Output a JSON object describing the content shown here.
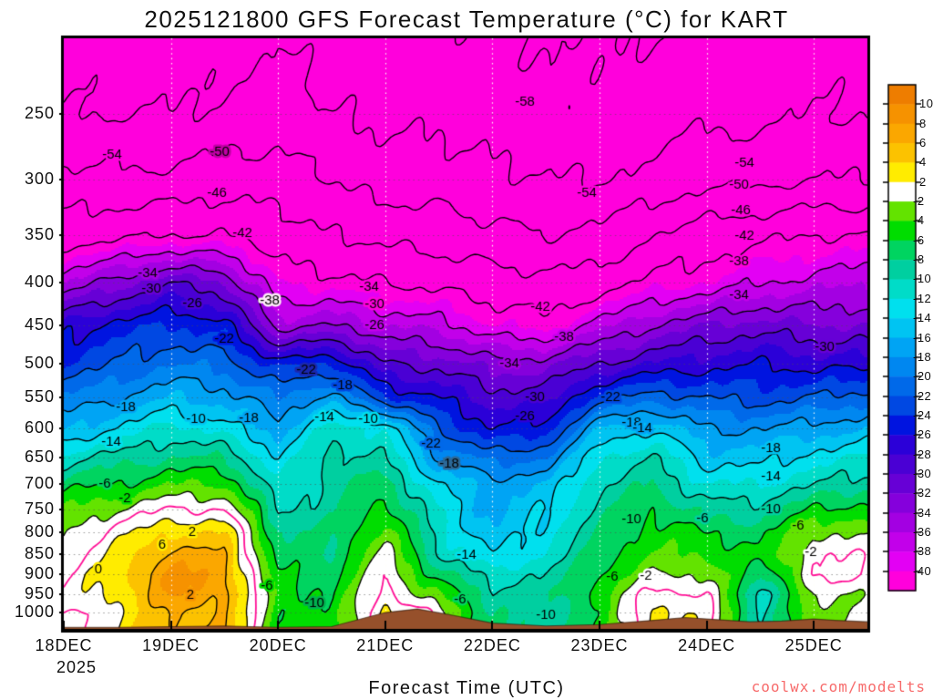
{
  "title": "2025121800 GFS Forecast Temperature (°C) for KART",
  "watermark": "coolwx.com/modelts",
  "axes": {
    "x_label": "Forecast Time (UTC)",
    "x_year": "2025",
    "x_tick_labels": [
      "18DEC",
      "19DEC",
      "20DEC",
      "21DEC",
      "22DEC",
      "23DEC",
      "24DEC",
      "25DEC"
    ],
    "y_tick_labels": [
      250,
      300,
      350,
      400,
      450,
      500,
      550,
      600,
      650,
      700,
      750,
      800,
      850,
      900,
      950,
      1000
    ]
  },
  "chart_data": {
    "type": "heatmap",
    "subtype": "filled-contour time-height cross-section",
    "title": "2025121800 GFS Forecast Temperature (°C) for KART",
    "xlabel": "Forecast Time (UTC)",
    "x_tick_labels": [
      "18DEC",
      "19DEC",
      "20DEC",
      "21DEC",
      "22DEC",
      "23DEC",
      "24DEC",
      "25DEC"
    ],
    "x_year": "2025",
    "time_days_from_18DEC00": [
      0,
      0.5,
      1,
      1.5,
      2,
      2.5,
      3,
      3.5,
      4,
      4.5,
      5,
      5.5,
      6,
      6.5,
      7,
      7.5
    ],
    "y_axis": {
      "scale": "log",
      "ticks_hPa": [
        250,
        300,
        350,
        400,
        450,
        500,
        550,
        600,
        650,
        700,
        750,
        800,
        850,
        900,
        950,
        1000
      ],
      "range_hPa": [
        202,
        1047
      ],
      "inverted": true
    },
    "pressure_levels_hPa": [
      200,
      250,
      300,
      350,
      400,
      450,
      500,
      550,
      600,
      650,
      700,
      750,
      800,
      850,
      900,
      950,
      1000,
      1050
    ],
    "temperature_C": [
      [
        -56,
        -56,
        -57,
        -56,
        -54,
        -56,
        -57,
        -57,
        -58,
        -58,
        -58,
        -58,
        -57,
        -57,
        -56,
        -56
      ],
      [
        -54,
        -54,
        -54,
        -53,
        -52,
        -54,
        -55,
        -55,
        -56,
        -57,
        -57,
        -56,
        -55,
        -55,
        -54,
        -54
      ],
      [
        -49,
        -49,
        -49,
        -48,
        -48,
        -50,
        -52,
        -52,
        -53,
        -54,
        -54,
        -53,
        -51,
        -51,
        -50,
        -50
      ],
      [
        -44,
        -43,
        -42,
        -42,
        -44,
        -46,
        -47,
        -48,
        -49,
        -50,
        -49,
        -46,
        -44,
        -43,
        -42,
        -42
      ],
      [
        -36,
        -33,
        -30,
        -32,
        -40,
        -41,
        -42,
        -43,
        -44,
        -45,
        -44,
        -41,
        -40,
        -38,
        -37,
        -36
      ],
      [
        -27,
        -25,
        -24,
        -25,
        -35,
        -34,
        -36,
        -37,
        -40,
        -41,
        -37,
        -34,
        -32,
        -31,
        -32,
        -32
      ],
      [
        -24,
        -22,
        -20,
        -21,
        -25,
        -24,
        -30,
        -31,
        -33,
        -33,
        -30,
        -28,
        -27,
        -26,
        -27,
        -27
      ],
      [
        -20,
        -18,
        -16,
        -17,
        -20,
        -17,
        -24,
        -26,
        -29,
        -29,
        -23,
        -21,
        -22,
        -23,
        -22,
        -21
      ],
      [
        -16,
        -14,
        -11,
        -13,
        -17,
        -11,
        -12,
        -22,
        -26,
        -25,
        -16,
        -14,
        -18,
        -18,
        -17,
        -16
      ],
      [
        -11,
        -9,
        -8,
        -8,
        -14,
        -9,
        -10,
        -18,
        -21,
        -20,
        -12,
        -10,
        -15,
        -15,
        -13,
        -12
      ],
      [
        -7,
        -6,
        -4,
        -4,
        -12,
        -9,
        -7,
        -14,
        -17,
        -16,
        -10,
        -8,
        -12,
        -12,
        -10,
        -9
      ],
      [
        -4,
        -2,
        0,
        0,
        -10,
        -9,
        -5,
        -12,
        -17,
        -14,
        -9,
        -6,
        -9,
        -9,
        -6,
        -5
      ],
      [
        -2,
        1,
        4,
        4,
        -8,
        -8,
        -3,
        -11,
        -16,
        -13,
        -8,
        -5,
        -6,
        -7,
        -2,
        -2.5
      ],
      [
        -1,
        2,
        7,
        6,
        -7,
        -8,
        -1,
        -10,
        -14,
        -12,
        -7,
        -4,
        -4,
        -6,
        0,
        -0.5
      ],
      [
        0,
        3,
        9,
        7,
        -6,
        -7,
        0,
        -7,
        -11,
        -10,
        -6,
        -2,
        -2,
        -8,
        0,
        0.5
      ],
      [
        0,
        3,
        8,
        7,
        -5,
        -6,
        1,
        -4,
        -9,
        -9,
        -5,
        1,
        0,
        -11,
        -2,
        -1.5
      ],
      [
        -1,
        2,
        6,
        6,
        -5,
        -6,
        3,
        -1,
        -8,
        -9,
        -6,
        3,
        1,
        -10,
        -3,
        -1
      ],
      [
        -1,
        2,
        6,
        6,
        -5,
        -6,
        3,
        -1,
        -8,
        -9,
        -6,
        3,
        1,
        -10,
        -3,
        -1
      ]
    ],
    "contour_interval_C": 4,
    "fill_interval_C": 2,
    "zero_line_color": "#ff0f96",
    "negative_contour_style": "dashed-black",
    "positive_contour_style": "solid-black",
    "contour_labels": {
      "format": "[temperature_C, days_from_18DEC00, pressure_hPa]",
      "items": [
        [
          -54,
          0.45,
          280
        ],
        [
          -50,
          1.45,
          278
        ],
        [
          -46,
          1.43,
          312
        ],
        [
          -42,
          1.67,
          348
        ],
        [
          -34,
          0.78,
          390
        ],
        [
          -30,
          0.82,
          407
        ],
        [
          -26,
          1.2,
          424
        ],
        [
          -22,
          1.5,
          468
        ],
        [
          -18,
          0.58,
          565
        ],
        [
          -14,
          0.44,
          623
        ],
        [
          -10,
          1.23,
          585
        ],
        [
          -6,
          0.38,
          700
        ],
        [
          -2,
          0.57,
          728
        ],
        [
          6,
          0.92,
          828
        ],
        [
          2,
          1.2,
          800
        ],
        [
          0,
          0.32,
          888
        ],
        [
          2,
          1.18,
          953
        ],
        [
          -6,
          1.9,
          930
        ],
        [
          -10,
          2.34,
          975
        ],
        [
          -18,
          1.73,
          583
        ],
        [
          -38,
          1.92,
          420
        ],
        [
          -34,
          2.85,
          405
        ],
        [
          -30,
          2.9,
          425
        ],
        [
          -26,
          2.9,
          450
        ],
        [
          -22,
          2.26,
          510
        ],
        [
          -18,
          2.6,
          532
        ],
        [
          -14,
          2.43,
          582
        ],
        [
          -10,
          2.84,
          585
        ],
        [
          -58,
          4.3,
          242
        ],
        [
          -54,
          4.88,
          312
        ],
        [
          -42,
          4.45,
          428
        ],
        [
          -38,
          4.67,
          465
        ],
        [
          -34,
          4.16,
          500
        ],
        [
          -30,
          4.4,
          550
        ],
        [
          -26,
          4.3,
          580
        ],
        [
          -22,
          3.43,
          626
        ],
        [
          -18,
          3.6,
          662
        ],
        [
          -14,
          3.76,
          853
        ],
        [
          -6,
          3.7,
          965
        ],
        [
          -10,
          4.5,
          1008
        ],
        [
          -54,
          6.35,
          287
        ],
        [
          -50,
          6.3,
          305
        ],
        [
          -46,
          6.32,
          327
        ],
        [
          -42,
          6.35,
          351
        ],
        [
          -38,
          6.3,
          377
        ],
        [
          -34,
          6.3,
          414
        ],
        [
          -30,
          7.1,
          478
        ],
        [
          -22,
          5.1,
          550
        ],
        [
          -18,
          5.3,
          590
        ],
        [
          -14,
          5.4,
          600
        ],
        [
          -18,
          6.6,
          634
        ],
        [
          -14,
          6.6,
          686
        ],
        [
          -10,
          6.6,
          750
        ],
        [
          -6,
          6.85,
          785
        ],
        [
          -10,
          5.3,
          772
        ],
        [
          -6,
          5.96,
          770
        ],
        [
          -6,
          5.12,
          905
        ],
        [
          -2,
          5.43,
          903
        ],
        [
          -2,
          6.97,
          845
        ]
      ]
    },
    "terrain": {
      "color": "#96502b",
      "surface_d_p": [
        [
          0,
          1042
        ],
        [
          0.5,
          1042
        ],
        [
          1,
          1040
        ],
        [
          1.5,
          1038
        ],
        [
          2,
          1042
        ],
        [
          2.5,
          1040
        ],
        [
          3,
          1000
        ],
        [
          3.3,
          990
        ],
        [
          3.6,
          1006
        ],
        [
          4,
          1030
        ],
        [
          4.5,
          1038
        ],
        [
          5,
          1034
        ],
        [
          5.5,
          1022
        ],
        [
          5.8,
          1014
        ],
        [
          6.1,
          1020
        ],
        [
          6.4,
          1026
        ],
        [
          6.7,
          1024
        ],
        [
          7,
          1018
        ],
        [
          7.2,
          1022
        ],
        [
          7.5,
          1026
        ]
      ]
    },
    "colorbar": {
      "tick_values": [
        10,
        8,
        6,
        4,
        2,
        -2,
        -4,
        -6,
        -8,
        -10,
        -12,
        -14,
        -16,
        -18,
        -20,
        -22,
        -24,
        -26,
        -28,
        -30,
        -32,
        -34,
        -36,
        -38,
        -40
      ],
      "band_colors": [
        "#ee7d00",
        "#f69200",
        "#fba700",
        "#fcc200",
        "#ffec00",
        "#ffffff",
        "#63e300",
        "#00dd00",
        "#00d460",
        "#00cfa0",
        "#00dcc8",
        "#00e0ee",
        "#00c4f2",
        "#00a4f4",
        "#0087f0",
        "#0069e9",
        "#0048e2",
        "#0014e0",
        "#2b00d8",
        "#4a00d4",
        "#6700d6",
        "#8500dc",
        "#a300e2",
        "#c200ea",
        "#e300f4",
        "#ff00dc"
      ],
      "legend_position": "right"
    },
    "grid": {
      "horizontal_dotted_at_ticks": true,
      "vertical_dotted_at_days": true
    }
  }
}
